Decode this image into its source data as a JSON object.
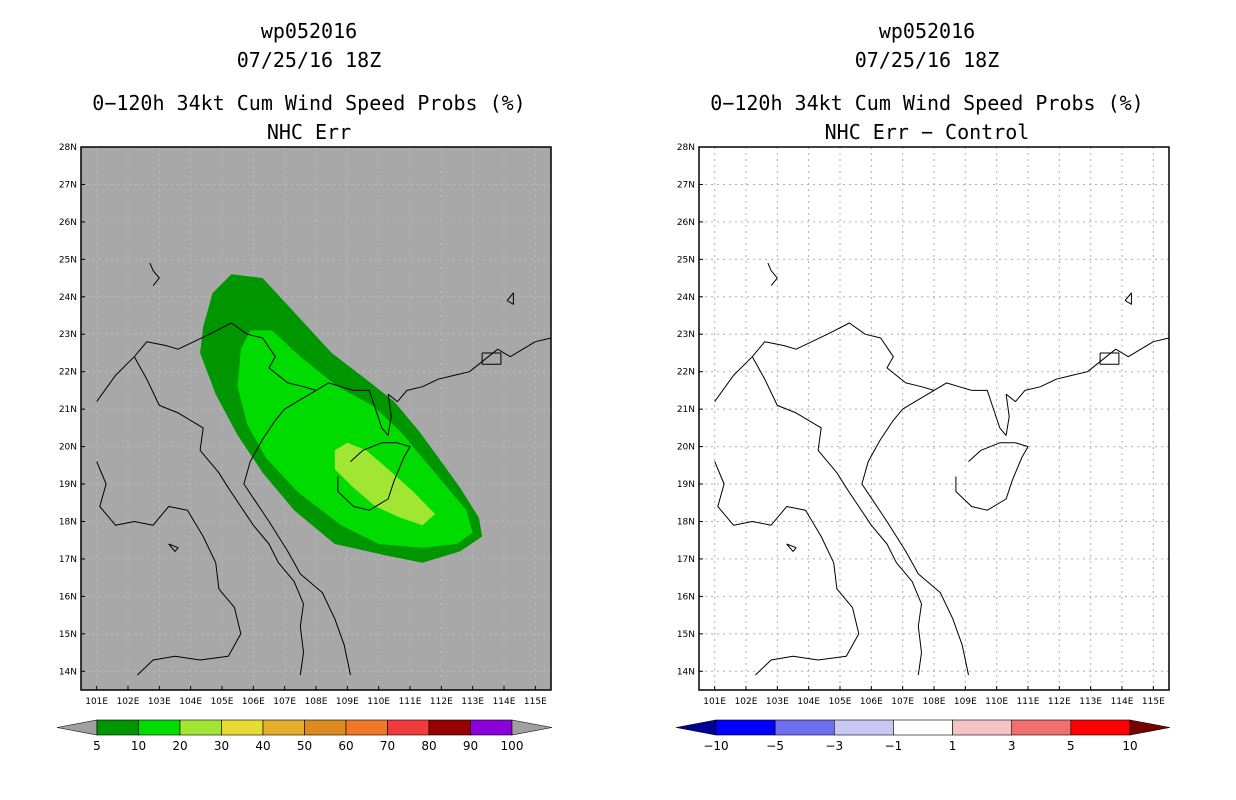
{
  "chart_data": [
    {
      "type": "heatmap",
      "storm_id": "wp052016",
      "date": "07/25/16 18Z",
      "title": "0−120h 34kt Cum Wind Speed Probs (%)",
      "subtitle": "NHC Err",
      "xlim": [
        100.5,
        115.5
      ],
      "ylim": [
        13.5,
        28
      ],
      "x_ticks": [
        "101E",
        "102E",
        "103E",
        "104E",
        "105E",
        "106E",
        "107E",
        "108E",
        "109E",
        "110E",
        "111E",
        "112E",
        "113E",
        "114E",
        "115E"
      ],
      "y_ticks": [
        "14N",
        "15N",
        "16N",
        "17N",
        "18N",
        "19N",
        "20N",
        "21N",
        "22N",
        "23N",
        "24N",
        "25N",
        "26N",
        "27N",
        "28N"
      ],
      "background": "#a8a8a8",
      "colorbar": {
        "labels": [
          "5",
          "10",
          "20",
          "30",
          "40",
          "50",
          "60",
          "70",
          "80",
          "90",
          "100"
        ],
        "colors": [
          "#a0a0a0",
          "#009600",
          "#00dc00",
          "#a0e632",
          "#e6dc32",
          "#e6af2d",
          "#dc8c1e",
          "#f07828",
          "#f03c3c",
          "#960000",
          "#8c00dc",
          "#a0a0a0"
        ]
      },
      "contours": [
        {
          "level": "5-10",
          "color": "#009600",
          "points": [
            [
              104.4,
              23.2
            ],
            [
              104.7,
              24.1
            ],
            [
              105.3,
              24.6
            ],
            [
              106.3,
              24.5
            ],
            [
              107.4,
              23.5
            ],
            [
              108.5,
              22.5
            ],
            [
              109.6,
              21.8
            ],
            [
              110.5,
              21.2
            ],
            [
              111.3,
              20.4
            ],
            [
              112.0,
              19.6
            ],
            [
              112.6,
              18.9
            ],
            [
              113.2,
              18.1
            ],
            [
              113.3,
              17.6
            ],
            [
              112.6,
              17.2
            ],
            [
              111.4,
              16.9
            ],
            [
              110.2,
              17.1
            ],
            [
              108.6,
              17.4
            ],
            [
              107.3,
              18.3
            ],
            [
              106.3,
              19.3
            ],
            [
              105.5,
              20.3
            ],
            [
              104.8,
              21.4
            ],
            [
              104.3,
              22.5
            ]
          ],
          "outline": true
        },
        {
          "level": "10-20",
          "color": "#00dc00",
          "points": [
            [
              105.6,
              22.6
            ],
            [
              105.9,
              23.1
            ],
            [
              106.6,
              23.1
            ],
            [
              107.5,
              22.4
            ],
            [
              108.7,
              21.6
            ],
            [
              109.8,
              21.1
            ],
            [
              110.7,
              20.4
            ],
            [
              111.5,
              19.6
            ],
            [
              112.2,
              18.9
            ],
            [
              112.8,
              18.3
            ],
            [
              113.0,
              17.7
            ],
            [
              112.5,
              17.4
            ],
            [
              111.4,
              17.3
            ],
            [
              110.0,
              17.4
            ],
            [
              108.8,
              17.9
            ],
            [
              107.4,
              18.8
            ],
            [
              106.4,
              19.7
            ],
            [
              105.8,
              20.6
            ],
            [
              105.5,
              21.6
            ]
          ]
        },
        {
          "level": "20-30",
          "color": "#a0e632",
          "points": [
            [
              108.6,
              19.9
            ],
            [
              109.0,
              20.1
            ],
            [
              109.6,
              19.9
            ],
            [
              110.3,
              19.4
            ],
            [
              111.1,
              18.8
            ],
            [
              111.8,
              18.2
            ],
            [
              111.4,
              17.9
            ],
            [
              110.7,
              18.1
            ],
            [
              109.9,
              18.4
            ],
            [
              109.2,
              18.9
            ],
            [
              108.6,
              19.4
            ]
          ]
        }
      ]
    },
    {
      "type": "heatmap",
      "storm_id": "wp052016",
      "date": "07/25/16 18Z",
      "title": "0−120h 34kt Cum Wind Speed Probs (%)",
      "subtitle": "NHC Err − Control",
      "xlim": [
        100.5,
        115.5
      ],
      "ylim": [
        13.5,
        28
      ],
      "x_ticks": [
        "101E",
        "102E",
        "103E",
        "104E",
        "105E",
        "106E",
        "107E",
        "108E",
        "109E",
        "110E",
        "111E",
        "112E",
        "113E",
        "114E",
        "115E"
      ],
      "y_ticks": [
        "14N",
        "15N",
        "16N",
        "17N",
        "18N",
        "19N",
        "20N",
        "21N",
        "22N",
        "23N",
        "24N",
        "25N",
        "26N",
        "27N",
        "28N"
      ],
      "background": "#ffffff",
      "colorbar": {
        "labels": [
          "−10",
          "−5",
          "−3",
          "−1",
          "1",
          "3",
          "5",
          "10"
        ],
        "colors": [
          "#000096",
          "#0000ff",
          "#6e6ef0",
          "#c8c8f5",
          "#ffffff",
          "#f5c3c3",
          "#f07070",
          "#ff0000",
          "#780000"
        ]
      },
      "contours": []
    }
  ],
  "coastline": [
    {
      "name": "china-south-coast",
      "points": [
        [
          110.3,
          21.4
        ],
        [
          110.6,
          21.2
        ],
        [
          110.9,
          21.5
        ],
        [
          111.4,
          21.6
        ],
        [
          111.9,
          21.8
        ],
        [
          112.4,
          21.9
        ],
        [
          112.9,
          22.0
        ],
        [
          113.2,
          22.2
        ],
        [
          113.5,
          22.4
        ],
        [
          113.8,
          22.6
        ],
        [
          114.2,
          22.4
        ],
        [
          114.6,
          22.6
        ],
        [
          115.0,
          22.8
        ],
        [
          115.5,
          22.9
        ]
      ]
    },
    {
      "name": "vietnam-china-coast",
      "points": [
        [
          109.2,
          21.5
        ],
        [
          108.8,
          21.6
        ],
        [
          108.4,
          21.7
        ],
        [
          108.0,
          21.5
        ],
        [
          107.4,
          21.2
        ],
        [
          107.0,
          21.0
        ],
        [
          106.7,
          20.7
        ],
        [
          106.3,
          20.2
        ],
        [
          105.9,
          19.6
        ],
        [
          105.7,
          19.0
        ],
        [
          106.1,
          18.5
        ],
        [
          106.5,
          18.0
        ],
        [
          107.1,
          17.2
        ],
        [
          107.5,
          16.6
        ],
        [
          108.2,
          16.1
        ],
        [
          108.6,
          15.4
        ],
        [
          108.9,
          14.7
        ],
        [
          109.1,
          13.9
        ]
      ]
    },
    {
      "name": "leizhou-peninsula",
      "points": [
        [
          109.2,
          21.5
        ],
        [
          109.7,
          21.5
        ],
        [
          109.9,
          21.0
        ],
        [
          110.1,
          20.5
        ],
        [
          110.3,
          20.3
        ],
        [
          110.4,
          20.8
        ],
        [
          110.3,
          21.4
        ]
      ]
    },
    {
      "name": "border-china-north-vietnam-laos",
      "points": [
        [
          101.0,
          21.2
        ],
        [
          101.6,
          21.9
        ],
        [
          102.2,
          22.4
        ],
        [
          102.6,
          22.8
        ],
        [
          103.2,
          22.7
        ],
        [
          103.6,
          22.6
        ],
        [
          104.1,
          22.8
        ],
        [
          104.6,
          23.0
        ],
        [
          105.3,
          23.3
        ],
        [
          105.8,
          23.0
        ],
        [
          106.3,
          22.9
        ],
        [
          106.7,
          22.4
        ],
        [
          106.5,
          22.1
        ],
        [
          107.1,
          21.7
        ],
        [
          107.6,
          21.6
        ],
        [
          108.0,
          21.5
        ]
      ]
    },
    {
      "name": "border-laos-vietnam",
      "points": [
        [
          102.2,
          22.4
        ],
        [
          102.6,
          21.8
        ],
        [
          103.0,
          21.1
        ],
        [
          103.6,
          20.9
        ],
        [
          104.4,
          20.5
        ],
        [
          104.3,
          19.9
        ],
        [
          104.9,
          19.3
        ],
        [
          105.2,
          18.9
        ],
        [
          105.6,
          18.4
        ],
        [
          106.0,
          17.9
        ],
        [
          106.5,
          17.4
        ],
        [
          106.8,
          16.9
        ],
        [
          107.3,
          16.4
        ],
        [
          107.6,
          15.8
        ],
        [
          107.5,
          15.2
        ],
        [
          107.6,
          14.5
        ],
        [
          107.5,
          13.9
        ]
      ]
    },
    {
      "name": "border-laos-thailand",
      "points": [
        [
          101.0,
          19.6
        ],
        [
          101.3,
          19.0
        ],
        [
          101.1,
          18.4
        ],
        [
          101.6,
          17.9
        ],
        [
          102.2,
          18.0
        ],
        [
          102.8,
          17.9
        ],
        [
          103.3,
          18.4
        ],
        [
          103.9,
          18.3
        ],
        [
          104.4,
          17.6
        ],
        [
          104.8,
          16.9
        ],
        [
          104.9,
          16.2
        ],
        [
          105.4,
          15.7
        ],
        [
          105.6,
          15.0
        ],
        [
          105.2,
          14.4
        ],
        [
          104.3,
          14.3
        ],
        [
          103.5,
          14.4
        ],
        [
          102.8,
          14.3
        ],
        [
          102.3,
          13.9
        ]
      ]
    },
    {
      "name": "hainan-island",
      "points": [
        [
          108.7,
          19.2
        ],
        [
          108.7,
          18.8
        ],
        [
          109.2,
          18.4
        ],
        [
          109.7,
          18.3
        ],
        [
          110.3,
          18.6
        ],
        [
          110.5,
          19.1
        ],
        [
          110.8,
          19.7
        ],
        [
          111.0,
          20.0
        ],
        [
          110.6,
          20.1
        ],
        [
          110.1,
          20.1
        ],
        [
          109.5,
          19.9
        ],
        [
          109.1,
          19.6
        ]
      ]
    },
    {
      "name": "island-gulf",
      "points": [
        [
          103.3,
          17.4
        ],
        [
          103.5,
          17.2
        ],
        [
          103.6,
          17.3
        ],
        [
          103.3,
          17.4
        ]
      ]
    },
    {
      "name": "island-north",
      "points": [
        [
          102.7,
          24.9
        ],
        [
          102.8,
          24.7
        ],
        [
          102.9,
          24.6
        ],
        [
          103.0,
          24.5
        ],
        [
          102.8,
          24.3
        ]
      ]
    },
    {
      "name": "taiwan-strait-islet",
      "points": [
        [
          114.1,
          23.9
        ],
        [
          114.3,
          24.1
        ],
        [
          114.3,
          23.8
        ],
        [
          114.1,
          23.9
        ]
      ]
    },
    {
      "name": "pearl-river-box",
      "points": [
        [
          113.3,
          22.5
        ],
        [
          113.9,
          22.5
        ],
        [
          113.9,
          22.2
        ],
        [
          113.3,
          22.2
        ],
        [
          113.3,
          22.5
        ]
      ]
    }
  ]
}
